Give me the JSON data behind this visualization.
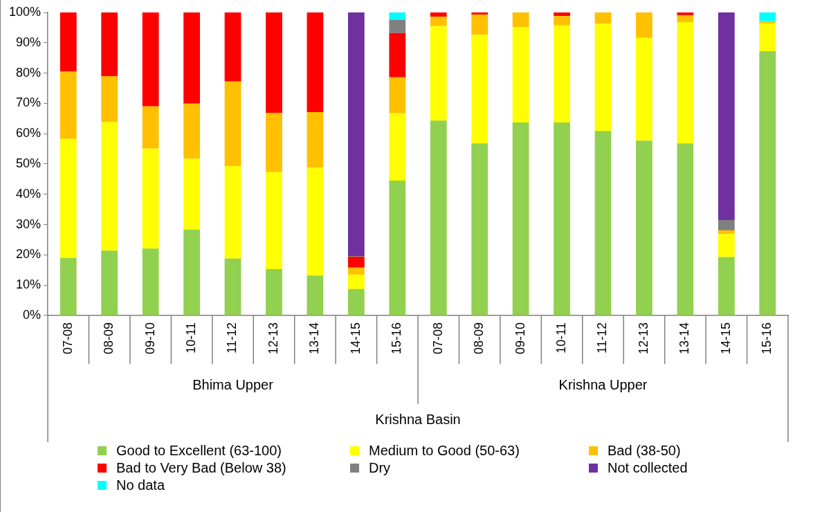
{
  "chart_data": {
    "type": "bar",
    "stacked": true,
    "xlabel": "Krishna Basin",
    "annotations": [
      "Bhima Upper",
      "Krishna Upper"
    ],
    "categories": [
      "07-08",
      "08-09",
      "09-10",
      "10-11",
      "11-12",
      "12-13",
      "13-14",
      "14-15",
      "15-16",
      "07-08",
      "08-09",
      "09-10",
      "10-11",
      "11-12",
      "12-13",
      "13-14",
      "14-15",
      "15-16"
    ],
    "series": [
      {
        "name": "Good to Excellent (63-100)",
        "color": "#92d050",
        "values": [
          19,
          21.4,
          22.1,
          28.3,
          18.8,
          15.3,
          13.2,
          8.7,
          44.5,
          64.3,
          56.8,
          63.7,
          63.7,
          60.9,
          57.7,
          56.8,
          19.3,
          87.2
        ]
      },
      {
        "name": "Medium to Good (50-63)",
        "color": "#ffff00",
        "values": [
          39.3,
          42.4,
          33,
          23.4,
          30.5,
          32,
          35.6,
          4.8,
          22.2,
          31.2,
          35.8,
          31.4,
          32,
          35.4,
          33.9,
          40,
          7.6,
          9.2
        ]
      },
      {
        "name": "Bad (38-50)",
        "color": "#ffc000",
        "values": [
          22.2,
          15.2,
          13.9,
          18.2,
          27.9,
          19.6,
          18.3,
          2.3,
          11.9,
          3.1,
          6.7,
          4.9,
          3.1,
          3.7,
          8.4,
          2.3,
          1.2,
          0.7
        ]
      },
      {
        "name": "Bad to Very Bad (Below 38)",
        "color": "#ff0000",
        "values": [
          19.5,
          21,
          31,
          30.1,
          22.8,
          33.1,
          32.9,
          3.6,
          14.6,
          1.4,
          0.7,
          0,
          1.2,
          0,
          0,
          0.9,
          0,
          0
        ]
      },
      {
        "name": "Dry",
        "color": "#808080",
        "values": [
          0,
          0,
          0,
          0,
          0,
          0,
          0,
          0.2,
          4.4,
          0,
          0,
          0,
          0,
          0,
          0,
          0,
          3.4,
          0
        ]
      },
      {
        "name": "Not collected",
        "color": "#7030a0",
        "values": [
          0,
          0,
          0,
          0,
          0,
          0,
          0,
          80.4,
          0,
          0,
          0,
          0,
          0,
          0,
          0,
          0,
          68.5,
          0
        ]
      },
      {
        "name": "No data",
        "color": "#00ffff",
        "values": [
          0,
          0,
          0,
          0,
          0,
          0,
          0,
          0,
          2.4,
          0,
          0,
          0,
          0,
          0,
          0,
          0,
          0,
          2.9
        ]
      }
    ],
    "ylim": [
      0,
      100
    ],
    "yticks": [
      {
        "value": 0,
        "label": "0%"
      },
      {
        "value": 10,
        "label": "10%"
      },
      {
        "value": 20,
        "label": "20%"
      },
      {
        "value": 30,
        "label": "30%"
      },
      {
        "value": 40,
        "label": "40%"
      },
      {
        "value": 50,
        "label": "50%"
      },
      {
        "value": 60,
        "label": "60%"
      },
      {
        "value": 70,
        "label": "70%"
      },
      {
        "value": 80,
        "label": "80%"
      },
      {
        "value": 90,
        "label": "90%"
      },
      {
        "value": 100,
        "label": "100%"
      }
    ],
    "grid": false,
    "legend": "bottom"
  }
}
